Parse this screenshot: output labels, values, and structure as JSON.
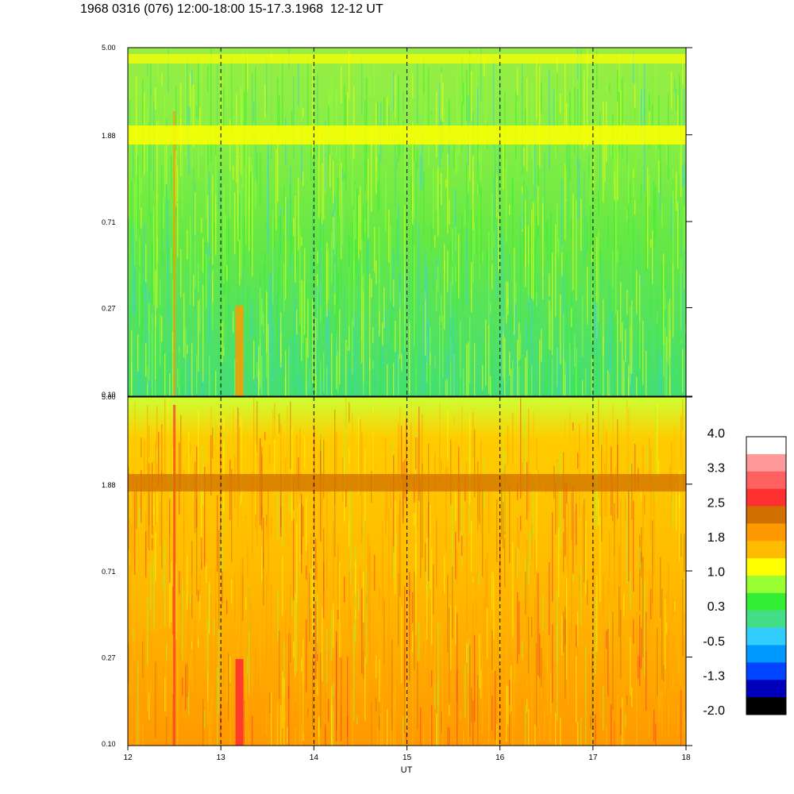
{
  "title": "1968 0316 (076) 12:00-18:00 15-17.3.1968  12-12 UT",
  "chart_data": {
    "type": "heatmap",
    "xlabel": "UT",
    "x_ticks": [
      "12",
      "13",
      "14",
      "15",
      "16",
      "17",
      "18"
    ],
    "xlim": [
      12,
      18
    ],
    "y_scale": "log",
    "dashed_time_markers": [
      13,
      14,
      15,
      16,
      17
    ],
    "panels": [
      {
        "name": "upper",
        "y_ticks": [
          "5.00",
          "1.88",
          "0.71",
          "0.27",
          "0.10"
        ],
        "ylim": [
          0.1,
          5.0
        ],
        "dominant_level": "green-yellow",
        "band_freq": 1.88,
        "band_color": "#ffff00"
      },
      {
        "name": "lower",
        "y_ticks": [
          "5.00",
          "1.88",
          "0.71",
          "0.27",
          "0.10"
        ],
        "ylim": [
          0.1,
          5.0
        ],
        "dominant_level": "orange-yellow",
        "band_freq": 1.88,
        "band_color": "#d07000"
      }
    ],
    "colorbar": {
      "labels": [
        "4.0",
        "3.3",
        "2.5",
        "1.8",
        "1.0",
        "0.3",
        "-0.5",
        "-1.3",
        "-2.0"
      ],
      "range": [
        -2.0,
        4.0
      ],
      "colors_top_to_bottom": [
        "#ffffff",
        "#ff9a9a",
        "#ff6060",
        "#ff3030",
        "#d07000",
        "#ff9900",
        "#ffbb00",
        "#ffff00",
        "#99ff33",
        "#33ee33",
        "#44dd88",
        "#33ccff",
        "#0099ff",
        "#0044ff",
        "#0000bb",
        "#000000"
      ]
    }
  }
}
